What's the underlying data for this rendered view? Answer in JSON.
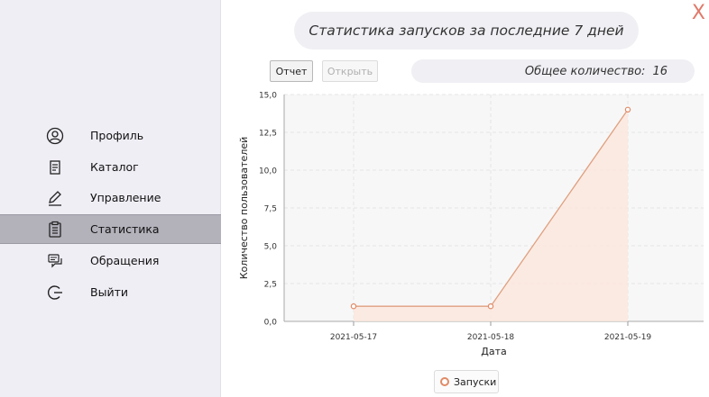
{
  "window": {
    "close_label": "X"
  },
  "sidebar": {
    "items": [
      {
        "id": "profile",
        "label": "Профиль",
        "icon": "user-circle-icon",
        "active": false
      },
      {
        "id": "catalog",
        "label": "Каталог",
        "icon": "catalog-icon",
        "active": false
      },
      {
        "id": "manage",
        "label": "Управление",
        "icon": "pencil-icon",
        "active": false
      },
      {
        "id": "stats",
        "label": "Статистика",
        "icon": "clipboard-list-icon",
        "active": true
      },
      {
        "id": "requests",
        "label": "Обращения",
        "icon": "messages-icon",
        "active": false
      },
      {
        "id": "logout",
        "label": "Выйти",
        "icon": "logout-icon",
        "active": false
      }
    ]
  },
  "header": {
    "title": "Статистика запусков за последние 7 дней"
  },
  "toolbar": {
    "report_label": "Отчет",
    "open_label": "Открыть"
  },
  "total": {
    "label": "Общее количество:",
    "value": "16"
  },
  "chart_data": {
    "type": "area",
    "categories": [
      "2021-05-17",
      "2021-05-18",
      "2021-05-19"
    ],
    "series": [
      {
        "name": "Запуски",
        "values": [
          1,
          1,
          14
        ]
      }
    ],
    "xlabel": "Дата",
    "ylabel": "Количество пользователей",
    "ylim": [
      0,
      15
    ],
    "yticks": [
      "0,0",
      "2,5",
      "5,0",
      "7,5",
      "10,0",
      "12,5",
      "15,0"
    ],
    "grid": true,
    "legend": "bottom",
    "colors": {
      "line": "#e0a080",
      "fill": "#fbe8de",
      "point": "#e08a66"
    }
  }
}
